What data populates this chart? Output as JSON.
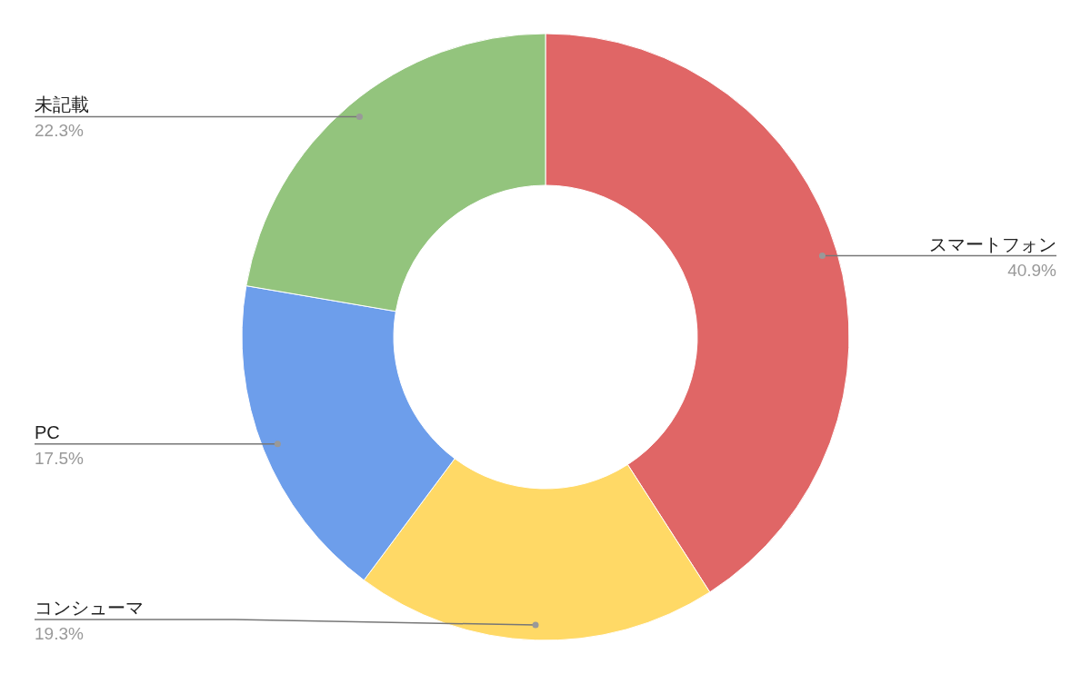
{
  "chart_data": {
    "type": "donut",
    "categories": [
      "スマートフォン",
      "コンシューマ",
      "PC",
      "未記載"
    ],
    "values": [
      40.9,
      19.3,
      17.5,
      22.3
    ],
    "colors": [
      "#e06666",
      "#ffd966",
      "#6d9eeb",
      "#93c47d"
    ],
    "value_labels": [
      "40.9%",
      "19.3%",
      "17.5%",
      "22.3%"
    ],
    "legend": false
  }
}
